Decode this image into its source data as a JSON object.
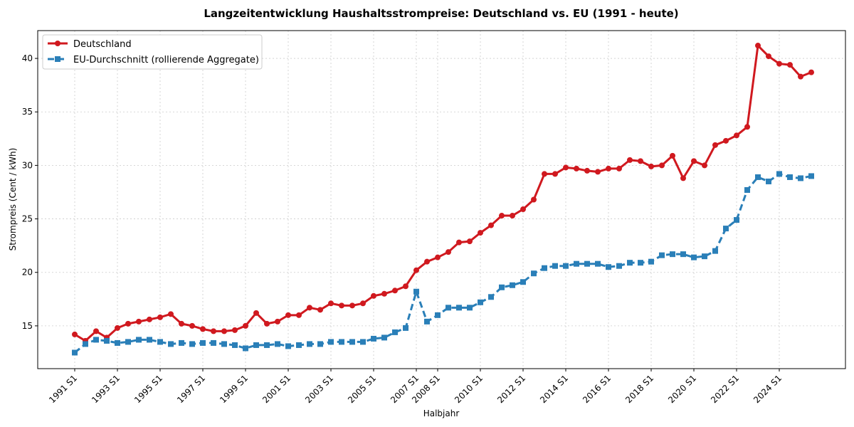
{
  "chart_data": {
    "type": "line",
    "title": "Langzeitentwicklung Haushaltsstrompreise: Deutschland vs. EU (1991 - heute)",
    "x_label": "Halbjahr",
    "y_label": "Strompreis (Cent / kWh)",
    "categories": [
      "1991 S1",
      null,
      null,
      null,
      "1993 S1",
      null,
      null,
      null,
      "1995 S1",
      null,
      null,
      null,
      "1997 S1",
      null,
      null,
      null,
      "1999 S1",
      null,
      null,
      null,
      "2001 S1",
      null,
      null,
      null,
      "2003 S1",
      null,
      null,
      null,
      "2005 S1",
      null,
      null,
      null,
      "2007 S1",
      null,
      "2008 S1",
      null,
      null,
      null,
      "2010 S1",
      null,
      null,
      null,
      "2012 S1",
      null,
      null,
      null,
      "2014 S1",
      null,
      null,
      null,
      "2016 S1",
      null,
      null,
      null,
      "2018 S1",
      null,
      null,
      null,
      "2020 S1",
      null,
      null,
      null,
      "2022 S1",
      null,
      null,
      null,
      "2024 S1",
      null,
      null,
      null
    ],
    "series": [
      {
        "name": "Deutschland",
        "color": "#d0191f",
        "marker": "circle",
        "dash": false,
        "values": [
          14.2,
          13.6,
          14.5,
          13.9,
          14.8,
          15.2,
          15.4,
          15.6,
          15.8,
          16.1,
          15.2,
          15.0,
          14.7,
          14.5,
          14.5,
          14.6,
          15.0,
          16.2,
          15.2,
          15.4,
          16.0,
          16.0,
          16.7,
          16.5,
          17.1,
          16.9,
          16.9,
          17.1,
          17.8,
          18.0,
          18.3,
          18.7,
          20.2,
          21.0,
          21.4,
          21.9,
          22.8,
          22.9,
          23.7,
          24.4,
          25.3,
          25.3,
          25.9,
          26.8,
          29.2,
          29.2,
          29.8,
          29.7,
          29.5,
          29.4,
          29.7,
          29.7,
          30.5,
          30.4,
          29.9,
          30.0,
          30.9,
          28.8,
          30.4,
          30.0,
          31.9,
          32.3,
          32.8,
          33.6,
          41.2,
          40.2,
          39.5,
          39.4,
          38.3,
          38.7
        ]
      },
      {
        "name": "EU-Durchschnitt (rollierende Aggregate)",
        "color": "#2a7fb8",
        "marker": "square",
        "dash": true,
        "values": [
          12.5,
          13.3,
          13.7,
          13.6,
          13.4,
          13.5,
          13.7,
          13.7,
          13.5,
          13.3,
          13.4,
          13.3,
          13.4,
          13.4,
          13.3,
          13.2,
          12.9,
          13.2,
          13.2,
          13.3,
          13.1,
          13.2,
          13.3,
          13.3,
          13.5,
          13.5,
          13.5,
          13.5,
          13.8,
          13.9,
          14.4,
          14.8,
          18.2,
          15.4,
          16.0,
          16.7,
          16.7,
          16.7,
          17.2,
          17.7,
          18.6,
          18.8,
          19.1,
          19.9,
          20.4,
          20.6,
          20.6,
          20.8,
          20.8,
          20.8,
          20.5,
          20.6,
          20.9,
          20.9,
          21.0,
          21.6,
          21.7,
          21.7,
          21.4,
          21.5,
          22.0,
          24.1,
          24.9,
          27.7,
          28.9,
          28.5,
          29.2,
          28.9,
          28.8,
          29.0
        ]
      }
    ],
    "ylim": [
      11,
      42.6
    ],
    "yticks": [
      15,
      20,
      25,
      30,
      35,
      40
    ],
    "grid": true,
    "legend": "upper left"
  }
}
